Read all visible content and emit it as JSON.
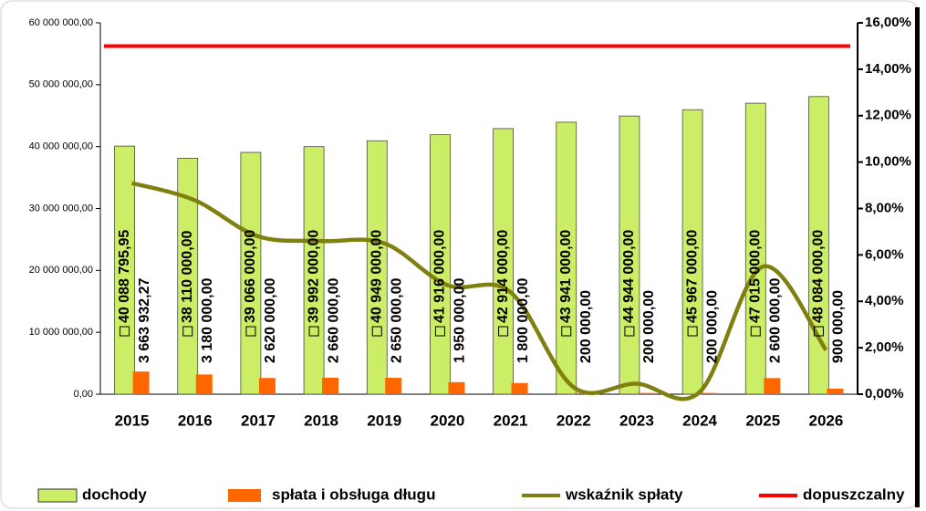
{
  "chart_data": {
    "type": "bar",
    "categories": [
      "2015",
      "2016",
      "2017",
      "2018",
      "2019",
      "2020",
      "2021",
      "2022",
      "2023",
      "2024",
      "2025",
      "2026"
    ],
    "series": [
      {
        "name": "dochody",
        "type": "bar",
        "color": "#ccee66",
        "values": [
          40088795.95,
          38110000,
          39066000,
          39992000,
          40949000,
          41916000,
          42914000,
          43941000,
          44944000,
          45967000,
          47015000,
          48084000
        ],
        "value_labels": [
          "40 088 795,95",
          "38 110 000,00",
          "39 066 000,00",
          "39 992 000,00",
          "40 949 000,00",
          "41 916 000,00",
          "42 914 000,00",
          "43 941 000,00",
          "44 944 000,00",
          "45 967 000,00",
          "47 015 000,00",
          "48 084 000,00"
        ]
      },
      {
        "name": "spłata i obsługa długu",
        "type": "bar",
        "color": "#ff6600",
        "values": [
          3663932.27,
          3180000,
          2620000,
          2660000,
          2650000,
          1950000,
          1800000,
          200000,
          200000,
          200000,
          2600000,
          900000
        ],
        "value_labels": [
          "3 663 932,27",
          "3 180 000,00",
          "2 620 000,00",
          "2 660 000,00",
          "2 650 000,00",
          "1 950 000,00",
          "1 800 000,00",
          "200 000,00",
          "200 000,00",
          "200 000,00",
          "2 600 000,00",
          "900 000,00"
        ]
      },
      {
        "name": "wskaźnik spłaty",
        "type": "line",
        "axis": "y2",
        "color": "#808010",
        "values": [
          9.1,
          8.35,
          6.8,
          6.6,
          6.5,
          4.7,
          4.4,
          0.3,
          0.45,
          0.1,
          5.5,
          1.9
        ]
      },
      {
        "name": "dopuszczalny",
        "type": "line",
        "axis": "y2",
        "color": "#ff0000",
        "values": [
          15,
          15,
          15,
          15,
          15,
          15,
          15,
          15,
          15,
          15,
          15,
          15
        ]
      }
    ],
    "ylim": [
      0,
      60000000
    ],
    "yticks": [
      {
        "value": 0,
        "label": "0,00"
      },
      {
        "value": 10000000,
        "label": "10 000 000,00"
      },
      {
        "value": 20000000,
        "label": "20 000 000,00"
      },
      {
        "value": 30000000,
        "label": "30 000 000,00"
      },
      {
        "value": 40000000,
        "label": "40 000 000,00"
      },
      {
        "value": 50000000,
        "label": "50 000 000,00"
      },
      {
        "value": 60000000,
        "label": "60 000 000,00"
      }
    ],
    "y2lim": [
      0,
      16
    ],
    "y2ticks": [
      {
        "value": 0,
        "label": "0,00%"
      },
      {
        "value": 2,
        "label": "2,00%"
      },
      {
        "value": 4,
        "label": "4,00%"
      },
      {
        "value": 6,
        "label": "6,00%"
      },
      {
        "value": 8,
        "label": "8,00%"
      },
      {
        "value": 10,
        "label": "10,00%"
      },
      {
        "value": 12,
        "label": "12,00%"
      },
      {
        "value": 14,
        "label": "14,00%"
      },
      {
        "value": 16,
        "label": "16,00%"
      }
    ],
    "legend": "bottom"
  }
}
